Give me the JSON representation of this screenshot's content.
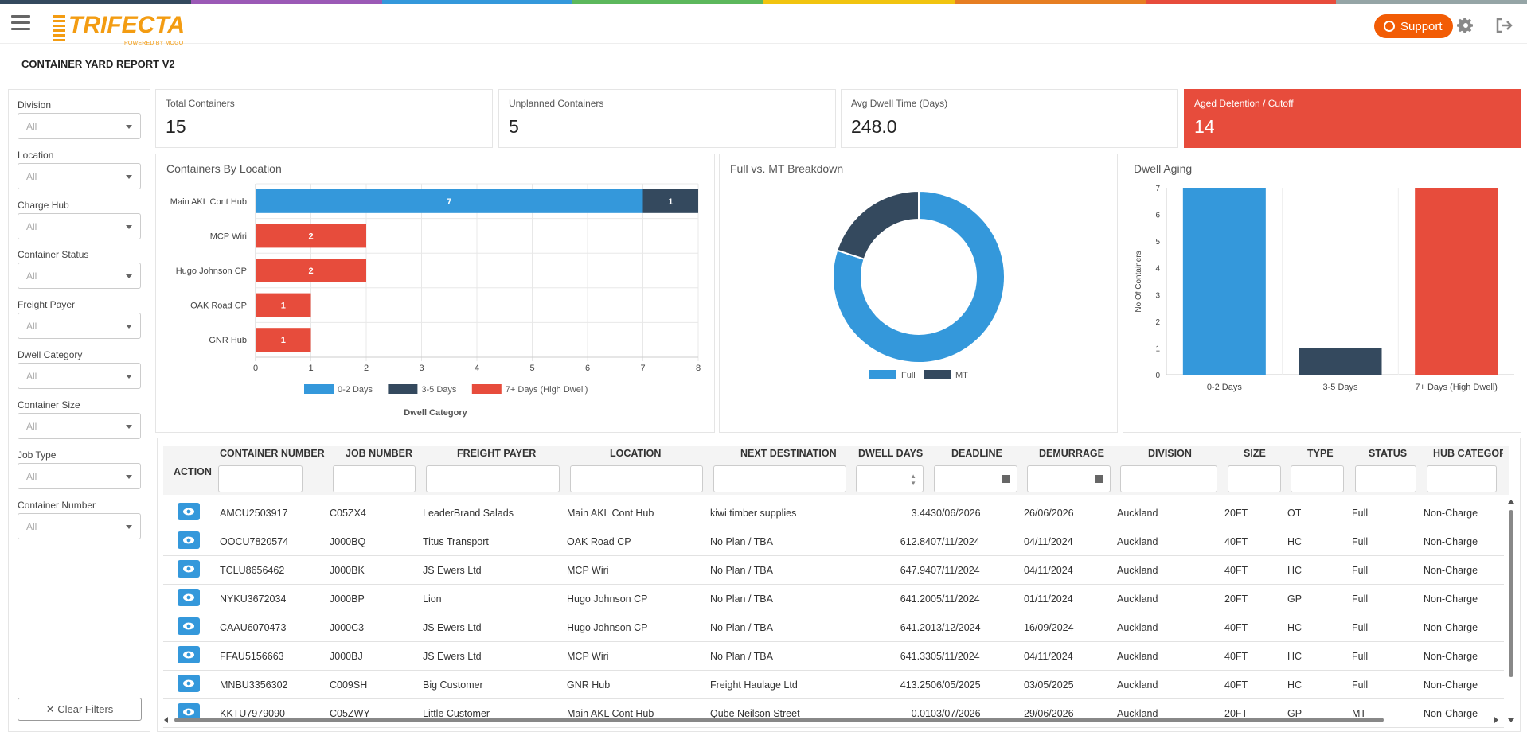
{
  "app": {
    "brand": "TRIFECTA",
    "brand_sub": "POWERED BY MOGO",
    "support_label": "Support",
    "page_title": "CONTAINER YARD REPORT V2"
  },
  "colors": {
    "strip": [
      "#34495e",
      "#9b59b6",
      "#3498db",
      "#5cb85c",
      "#f1c40f",
      "#e67e22",
      "#e74c3c",
      "#95a5a6"
    ],
    "accent": "#f25c05",
    "blue": "#3498db",
    "navy": "#34495e",
    "red": "#e74c3c"
  },
  "icons": {
    "menu": "menu-icon",
    "support": "headset-icon",
    "settings": "gear-icon",
    "logout": "logout-icon",
    "view": "eye-icon",
    "calendar": "calendar-icon"
  },
  "filters": [
    {
      "label": "Division",
      "value": "All"
    },
    {
      "label": "Location",
      "value": "All"
    },
    {
      "label": "Charge Hub",
      "value": "All"
    },
    {
      "label": "Container Status",
      "value": "All"
    },
    {
      "label": "Freight Payer",
      "value": "All"
    },
    {
      "label": "Dwell Category",
      "value": "All"
    },
    {
      "label": "Container Size",
      "value": "All"
    },
    {
      "label": "Job Type",
      "value": "All"
    },
    {
      "label": "Container Number",
      "value": "All"
    }
  ],
  "clear_filters": "✕ Clear Filters",
  "kpis": [
    {
      "label": "Total Containers",
      "value": "15"
    },
    {
      "label": "Unplanned Containers",
      "value": "5"
    },
    {
      "label": "Avg Dwell Time (Days)",
      "value": "248.0"
    },
    {
      "label": "Aged Detention / Cutoff",
      "value": "14"
    }
  ],
  "chart_data": [
    {
      "type": "bar",
      "orientation": "horizontal",
      "stacked": true,
      "title": "Containers By Location",
      "xlabel": "Dwell Category",
      "categories": [
        "Main AKL Cont Hub",
        "MCP Wiri",
        "Hugo Johnson CP",
        "OAK Road CP",
        "GNR Hub"
      ],
      "series": [
        {
          "name": "0-2 Days",
          "color": "#3498db",
          "values": [
            7,
            0,
            0,
            0,
            0
          ]
        },
        {
          "name": "3-5 Days",
          "color": "#34495e",
          "values": [
            1,
            0,
            0,
            0,
            0
          ]
        },
        {
          "name": "7+ Days (High Dwell)",
          "color": "#e74c3c",
          "values": [
            0,
            2,
            2,
            1,
            1
          ]
        }
      ],
      "xlim": [
        0,
        8
      ],
      "xticks": [
        "0",
        "1",
        "2",
        "3",
        "4",
        "5",
        "6",
        "7",
        "8"
      ],
      "legend": "bottom"
    },
    {
      "type": "pie",
      "donut": true,
      "title": "Full vs. MT Breakdown",
      "slices": [
        {
          "name": "Full",
          "value": 12,
          "color": "#3498db"
        },
        {
          "name": "MT",
          "value": 3,
          "color": "#34495e"
        }
      ],
      "legend": "bottom"
    },
    {
      "type": "bar",
      "title": "Dwell Aging",
      "ylabel": "No Of Containers",
      "categories": [
        "0-2 Days",
        "3-5 Days",
        "7+ Days (High Dwell)"
      ],
      "values": [
        7,
        1,
        7
      ],
      "colors": [
        "#3498db",
        "#34495e",
        "#e74c3c"
      ],
      "ylim": [
        0,
        7
      ],
      "yticks": [
        "0",
        "1",
        "2",
        "3",
        "4",
        "5",
        "6",
        "7"
      ]
    }
  ],
  "table": {
    "action_header": "ACTION",
    "columns": [
      "CONTAINER NUMBER",
      "JOB NUMBER",
      "FREIGHT PAYER",
      "LOCATION",
      "NEXT DESTINATION",
      "DWELL DAYS",
      "DEADLINE",
      "DEMURRAGE",
      "DIVISION",
      "SIZE",
      "TYPE",
      "STATUS",
      "HUB CATEGOR"
    ],
    "rows": [
      [
        "AMCU2503917",
        "C05ZX4",
        "LeaderBrand Salads",
        "Main AKL Cont Hub",
        "kiwi timber supplies",
        "3.44",
        "30/06/2026",
        "26/06/2026",
        "Auckland",
        "20FT",
        "OT",
        "Full",
        "Non-Charge"
      ],
      [
        "OOCU7820574",
        "J000BQ",
        "Titus Transport",
        "OAK Road CP",
        "No Plan / TBA",
        "612.84",
        "07/11/2024",
        "04/11/2024",
        "Auckland",
        "40FT",
        "HC",
        "Full",
        "Non-Charge"
      ],
      [
        "TCLU8656462",
        "J000BK",
        "JS Ewers Ltd",
        "MCP Wiri",
        "No Plan / TBA",
        "647.94",
        "07/11/2024",
        "04/11/2024",
        "Auckland",
        "40FT",
        "HC",
        "Full",
        "Non-Charge"
      ],
      [
        "NYKU3672034",
        "J000BP",
        "Lion",
        "Hugo Johnson CP",
        "No Plan / TBA",
        "641.20",
        "05/11/2024",
        "01/11/2024",
        "Auckland",
        "20FT",
        "GP",
        "Full",
        "Non-Charge"
      ],
      [
        "CAAU6070473",
        "J000C3",
        "JS Ewers Ltd",
        "Hugo Johnson CP",
        "No Plan / TBA",
        "641.20",
        "13/12/2024",
        "16/09/2024",
        "Auckland",
        "40FT",
        "HC",
        "Full",
        "Non-Charge"
      ],
      [
        "FFAU5156663",
        "J000BJ",
        "JS Ewers Ltd",
        "MCP Wiri",
        "No Plan / TBA",
        "641.33",
        "05/11/2024",
        "04/11/2024",
        "Auckland",
        "40FT",
        "HC",
        "Full",
        "Non-Charge"
      ],
      [
        "MNBU3356302",
        "C009SH",
        "Big Customer",
        "GNR Hub",
        "Freight Haulage Ltd",
        "413.25",
        "06/05/2025",
        "03/05/2025",
        "Auckland",
        "40FT",
        "HC",
        "Full",
        "Non-Charge"
      ],
      [
        "KKTU7979090",
        "C05ZWY",
        "Little Customer",
        "Main AKL Cont Hub",
        "Qube Neilson Street",
        "-0.01",
        "03/07/2026",
        "29/06/2026",
        "Auckland",
        "20FT",
        "GP",
        "MT",
        "Non-Charge"
      ]
    ]
  }
}
